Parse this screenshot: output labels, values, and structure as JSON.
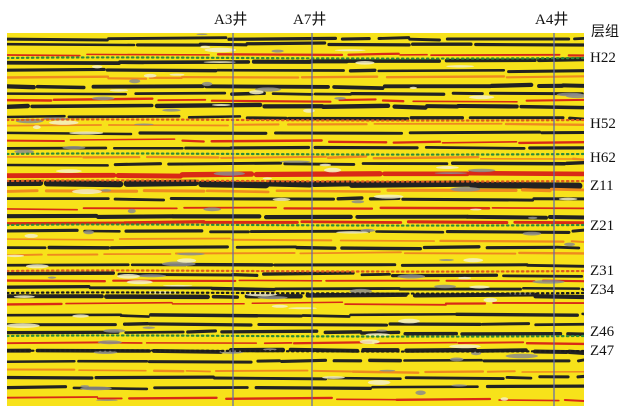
{
  "legend_title": "层组",
  "wells": [
    {
      "name": "A3井",
      "color": "#5b67b5"
    },
    {
      "name": "A7井",
      "color": "#5b67b5"
    },
    {
      "name": "A4井",
      "color": "#5b67b5"
    }
  ],
  "horizons": [
    {
      "name": "H22",
      "color": "#2e8b3a"
    },
    {
      "name": "H52",
      "color": "#e05a1e"
    },
    {
      "name": "H62",
      "color": "#2e8b3a"
    },
    {
      "name": "Z11",
      "color": "#e05a1e"
    },
    {
      "name": "Z21",
      "color": "#2e8b3a"
    },
    {
      "name": "Z31",
      "color": "#e05a1e"
    },
    {
      "name": "Z34",
      "color": "#1a1a1a"
    },
    {
      "name": "Z46",
      "color": "#2e8b3a"
    },
    {
      "name": "Z47",
      "color": "#1a1a1a"
    }
  ],
  "colors": {
    "background": "#f7e21a",
    "trough_black": "#222222",
    "peak_red": "#d92a16",
    "orange": "#ef8a1e",
    "pale": "#f5f0c8"
  }
}
